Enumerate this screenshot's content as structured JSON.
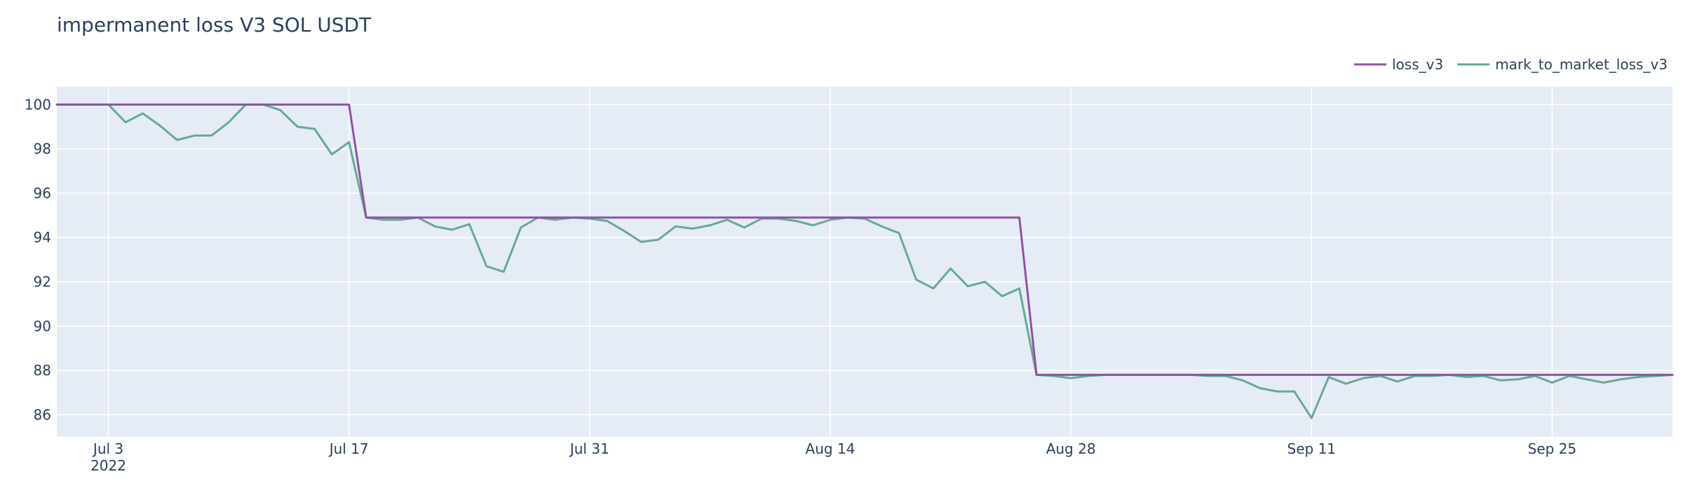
{
  "chart_data": {
    "type": "line",
    "title": "impermanent loss V3 SOL USDT",
    "xlabel": "",
    "ylabel": "",
    "x_range": [
      "2022-06-30",
      "2022-10-02"
    ],
    "ylim": [
      85.0,
      100.8
    ],
    "grid": true,
    "legend_position": "top-right",
    "x_ticks": [
      {
        "date": "2022-07-03",
        "label": "Jul 3",
        "sublabel": "2022"
      },
      {
        "date": "2022-07-17",
        "label": "Jul 17",
        "sublabel": ""
      },
      {
        "date": "2022-07-31",
        "label": "Jul 31",
        "sublabel": ""
      },
      {
        "date": "2022-08-14",
        "label": "Aug 14",
        "sublabel": ""
      },
      {
        "date": "2022-08-28",
        "label": "Aug 28",
        "sublabel": ""
      },
      {
        "date": "2022-09-11",
        "label": "Sep 11",
        "sublabel": ""
      },
      {
        "date": "2022-09-25",
        "label": "Sep 25",
        "sublabel": ""
      }
    ],
    "y_ticks": [
      {
        "value": 86,
        "label": "86"
      },
      {
        "value": 88,
        "label": "88"
      },
      {
        "value": 90,
        "label": "90"
      },
      {
        "value": 92,
        "label": "92"
      },
      {
        "value": 94,
        "label": "94"
      },
      {
        "value": 96,
        "label": "96"
      },
      {
        "value": 98,
        "label": "98"
      },
      {
        "value": 100,
        "label": "100"
      }
    ],
    "series": [
      {
        "name": "loss_v3",
        "color": "#8c54a1",
        "points": [
          [
            "2022-06-30",
            100
          ],
          [
            "2022-07-17",
            100
          ],
          [
            "2022-07-18",
            94.9
          ],
          [
            "2022-08-25",
            94.9
          ],
          [
            "2022-08-26",
            87.8
          ],
          [
            "2022-10-02",
            87.8
          ]
        ]
      },
      {
        "name": "mark_to_market_loss_v3",
        "color": "#66aa92",
        "points": [
          [
            "2022-06-30",
            100
          ],
          [
            "2022-07-01",
            100
          ],
          [
            "2022-07-02",
            100
          ],
          [
            "2022-07-03",
            100
          ],
          [
            "2022-07-04",
            99.2
          ],
          [
            "2022-07-05",
            99.6
          ],
          [
            "2022-07-06",
            99.05
          ],
          [
            "2022-07-07",
            98.4
          ],
          [
            "2022-07-08",
            98.6
          ],
          [
            "2022-07-09",
            98.6
          ],
          [
            "2022-07-10",
            99.2
          ],
          [
            "2022-07-11",
            100
          ],
          [
            "2022-07-12",
            100
          ],
          [
            "2022-07-13",
            99.75
          ],
          [
            "2022-07-14",
            99.0
          ],
          [
            "2022-07-15",
            98.9
          ],
          [
            "2022-07-16",
            97.75
          ],
          [
            "2022-07-17",
            98.3
          ],
          [
            "2022-07-18",
            94.9
          ],
          [
            "2022-07-19",
            94.8
          ],
          [
            "2022-07-20",
            94.8
          ],
          [
            "2022-07-21",
            94.9
          ],
          [
            "2022-07-22",
            94.5
          ],
          [
            "2022-07-23",
            94.35
          ],
          [
            "2022-07-24",
            94.6
          ],
          [
            "2022-07-25",
            92.7
          ],
          [
            "2022-07-26",
            92.45
          ],
          [
            "2022-07-27",
            94.45
          ],
          [
            "2022-07-28",
            94.9
          ],
          [
            "2022-07-29",
            94.8
          ],
          [
            "2022-07-30",
            94.9
          ],
          [
            "2022-07-31",
            94.85
          ],
          [
            "2022-08-01",
            94.75
          ],
          [
            "2022-08-02",
            94.3
          ],
          [
            "2022-08-03",
            93.8
          ],
          [
            "2022-08-04",
            93.9
          ],
          [
            "2022-08-05",
            94.5
          ],
          [
            "2022-08-06",
            94.4
          ],
          [
            "2022-08-07",
            94.55
          ],
          [
            "2022-08-08",
            94.8
          ],
          [
            "2022-08-09",
            94.45
          ],
          [
            "2022-08-10",
            94.85
          ],
          [
            "2022-08-11",
            94.85
          ],
          [
            "2022-08-12",
            94.75
          ],
          [
            "2022-08-13",
            94.55
          ],
          [
            "2022-08-14",
            94.8
          ],
          [
            "2022-08-15",
            94.9
          ],
          [
            "2022-08-16",
            94.85
          ],
          [
            "2022-08-17",
            94.5
          ],
          [
            "2022-08-18",
            94.2
          ],
          [
            "2022-08-19",
            92.1
          ],
          [
            "2022-08-20",
            91.7
          ],
          [
            "2022-08-21",
            92.6
          ],
          [
            "2022-08-22",
            91.8
          ],
          [
            "2022-08-23",
            92.0
          ],
          [
            "2022-08-24",
            91.35
          ],
          [
            "2022-08-25",
            91.7
          ],
          [
            "2022-08-26",
            87.8
          ],
          [
            "2022-08-27",
            87.75
          ],
          [
            "2022-08-28",
            87.65
          ],
          [
            "2022-08-29",
            87.75
          ],
          [
            "2022-08-30",
            87.8
          ],
          [
            "2022-08-31",
            87.8
          ],
          [
            "2022-09-01",
            87.8
          ],
          [
            "2022-09-02",
            87.8
          ],
          [
            "2022-09-03",
            87.8
          ],
          [
            "2022-09-04",
            87.8
          ],
          [
            "2022-09-05",
            87.75
          ],
          [
            "2022-09-06",
            87.75
          ],
          [
            "2022-09-07",
            87.55
          ],
          [
            "2022-09-08",
            87.2
          ],
          [
            "2022-09-09",
            87.05
          ],
          [
            "2022-09-10",
            87.05
          ],
          [
            "2022-09-11",
            85.85
          ],
          [
            "2022-09-12",
            87.7
          ],
          [
            "2022-09-13",
            87.4
          ],
          [
            "2022-09-14",
            87.65
          ],
          [
            "2022-09-15",
            87.75
          ],
          [
            "2022-09-16",
            87.5
          ],
          [
            "2022-09-17",
            87.75
          ],
          [
            "2022-09-18",
            87.75
          ],
          [
            "2022-09-19",
            87.8
          ],
          [
            "2022-09-20",
            87.7
          ],
          [
            "2022-09-21",
            87.75
          ],
          [
            "2022-09-22",
            87.55
          ],
          [
            "2022-09-23",
            87.6
          ],
          [
            "2022-09-24",
            87.75
          ],
          [
            "2022-09-25",
            87.45
          ],
          [
            "2022-09-26",
            87.75
          ],
          [
            "2022-09-27",
            87.6
          ],
          [
            "2022-09-28",
            87.45
          ],
          [
            "2022-09-29",
            87.6
          ],
          [
            "2022-09-30",
            87.7
          ],
          [
            "2022-10-01",
            87.75
          ],
          [
            "2022-10-02",
            87.8
          ]
        ]
      }
    ]
  }
}
